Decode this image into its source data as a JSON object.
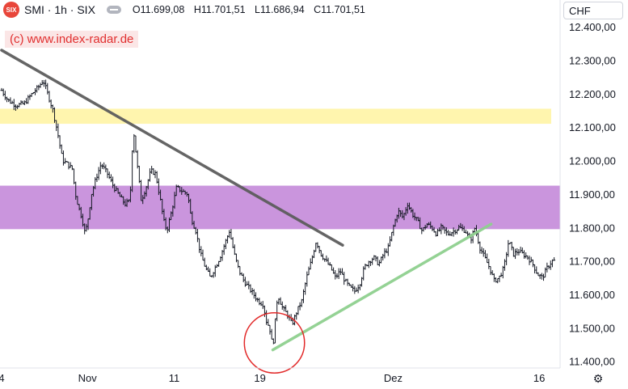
{
  "header": {
    "icon_text": "SIX",
    "symbol_line": "SMI · 1h · SIX",
    "open": "O11.699,08",
    "high": "H11.701,51",
    "low": "L11.686,94",
    "close": "C11.701,51"
  },
  "watermark": "(c) www.index-radar.de",
  "currency": "CHF",
  "icons": {
    "symbol": "six-logo-icon",
    "visibility": "eye-icon",
    "settings": "gear-icon"
  },
  "colors": {
    "candles": "#131722",
    "yellow_zone": "#fff3a0",
    "purple_zone": "#c48ad9",
    "trendline_down": "#5d5d5d",
    "trendline_up": "#8fd08f",
    "circle": "#e22a2a"
  },
  "chart_data": {
    "type": "bar",
    "style": "ohlc",
    "ylim": [
      11380,
      12480
    ],
    "y_ticks": [
      "12.400,00",
      "12.300,00",
      "12.200,00",
      "12.100,00",
      "12.000,00",
      "11.900,00",
      "11.800,00",
      "11.700,00",
      "11.600,00",
      "11.500,00",
      "11.400,00"
    ],
    "y_tick_values": [
      12400,
      12300,
      12200,
      12100,
      12000,
      11900,
      11800,
      11700,
      11600,
      11500,
      11400
    ],
    "x_ticks": [
      "4",
      "Nov",
      "11",
      "19",
      "Dez",
      "16"
    ],
    "x_tick_index": [
      0,
      107,
      215,
      322,
      488,
      670
    ],
    "index_range": [
      0,
      690
    ],
    "close_path": [
      [
        0,
        12210
      ],
      [
        8,
        12180
      ],
      [
        18,
        12165
      ],
      [
        28,
        12170
      ],
      [
        38,
        12200
      ],
      [
        46,
        12220
      ],
      [
        52,
        12240
      ],
      [
        58,
        12195
      ],
      [
        64,
        12150
      ],
      [
        70,
        12080
      ],
      [
        76,
        12000
      ],
      [
        82,
        11990
      ],
      [
        88,
        11975
      ],
      [
        92,
        11900
      ],
      [
        96,
        11860
      ],
      [
        100,
        11830
      ],
      [
        104,
        11780
      ],
      [
        108,
        11830
      ],
      [
        112,
        11900
      ],
      [
        118,
        11950
      ],
      [
        124,
        11990
      ],
      [
        132,
        11960
      ],
      [
        140,
        11920
      ],
      [
        148,
        11890
      ],
      [
        154,
        11870
      ],
      [
        160,
        11880
      ],
      [
        164,
        12100
      ],
      [
        168,
        12010
      ],
      [
        174,
        11880
      ],
      [
        180,
        11920
      ],
      [
        186,
        11970
      ],
      [
        192,
        11960
      ],
      [
        198,
        11880
      ],
      [
        202,
        11820
      ],
      [
        206,
        11790
      ],
      [
        212,
        11850
      ],
      [
        218,
        11920
      ],
      [
        224,
        11910
      ],
      [
        232,
        11900
      ],
      [
        236,
        11830
      ],
      [
        242,
        11790
      ],
      [
        248,
        11720
      ],
      [
        254,
        11680
      ],
      [
        260,
        11650
      ],
      [
        266,
        11680
      ],
      [
        272,
        11710
      ],
      [
        278,
        11750
      ],
      [
        284,
        11790
      ],
      [
        290,
        11720
      ],
      [
        296,
        11670
      ],
      [
        302,
        11640
      ],
      [
        308,
        11620
      ],
      [
        314,
        11600
      ],
      [
        320,
        11580
      ],
      [
        326,
        11570
      ],
      [
        330,
        11520
      ],
      [
        334,
        11500
      ],
      [
        338,
        11440
      ],
      [
        344,
        11600
      ],
      [
        350,
        11560
      ],
      [
        356,
        11540
      ],
      [
        362,
        11510
      ],
      [
        368,
        11550
      ],
      [
        374,
        11580
      ],
      [
        380,
        11650
      ],
      [
        386,
        11700
      ],
      [
        392,
        11760
      ],
      [
        398,
        11720
      ],
      [
        404,
        11700
      ],
      [
        410,
        11680
      ],
      [
        416,
        11650
      ],
      [
        422,
        11670
      ],
      [
        428,
        11640
      ],
      [
        434,
        11620
      ],
      [
        440,
        11610
      ],
      [
        446,
        11630
      ],
      [
        452,
        11680
      ],
      [
        458,
        11700
      ],
      [
        464,
        11710
      ],
      [
        470,
        11690
      ],
      [
        476,
        11720
      ],
      [
        482,
        11740
      ],
      [
        488,
        11800
      ],
      [
        494,
        11850
      ],
      [
        500,
        11830
      ],
      [
        506,
        11870
      ],
      [
        512,
        11840
      ],
      [
        518,
        11820
      ],
      [
        524,
        11790
      ],
      [
        530,
        11810
      ],
      [
        536,
        11800
      ],
      [
        542,
        11780
      ],
      [
        548,
        11800
      ],
      [
        556,
        11780
      ],
      [
        564,
        11790
      ],
      [
        570,
        11800
      ],
      [
        578,
        11790
      ],
      [
        584,
        11760
      ],
      [
        590,
        11800
      ],
      [
        596,
        11740
      ],
      [
        602,
        11710
      ],
      [
        608,
        11680
      ],
      [
        614,
        11640
      ],
      [
        620,
        11650
      ],
      [
        626,
        11680
      ],
      [
        632,
        11760
      ],
      [
        638,
        11720
      ],
      [
        644,
        11730
      ],
      [
        650,
        11720
      ],
      [
        656,
        11710
      ],
      [
        662,
        11690
      ],
      [
        668,
        11660
      ],
      [
        674,
        11650
      ],
      [
        680,
        11680
      ],
      [
        686,
        11700
      ]
    ],
    "zones": [
      {
        "color": "yellow",
        "y": [
          12110,
          12155
        ]
      },
      {
        "color": "purple",
        "y": [
          11795,
          11925
        ]
      }
    ],
    "trendlines": [
      {
        "color": "gray",
        "from": [
          0,
          12330
        ],
        "to": [
          425,
          11747
        ]
      },
      {
        "color": "green",
        "from": [
          338,
          11434
        ],
        "to": [
          610,
          11810
        ]
      }
    ],
    "annotations": [
      {
        "shape": "circle",
        "center": [
          340,
          11455
        ],
        "radius_y": 100
      }
    ]
  }
}
